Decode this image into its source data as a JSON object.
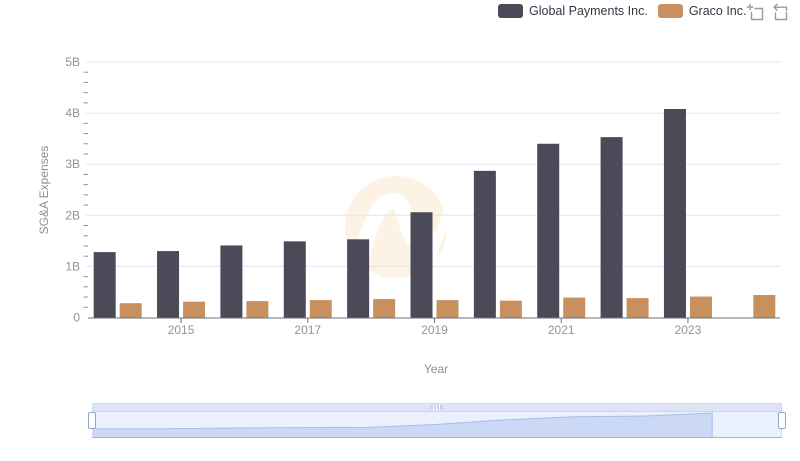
{
  "legend": {
    "items": [
      {
        "label": "Global Payments Inc.",
        "color": "#4a4a59"
      },
      {
        "label": "Graco Inc.",
        "color": "#c9905f"
      }
    ]
  },
  "toolbox": {
    "tools": [
      "zoom-select",
      "zoom-restore"
    ],
    "icon_color": "#9b9b9b"
  },
  "chart_data": {
    "type": "bar",
    "title": "",
    "xlabel": "Year",
    "ylabel": "SG&A Expenses",
    "categories": [
      "2014",
      "2015",
      "2016",
      "2017",
      "2018",
      "2019",
      "2020",
      "2021",
      "2022",
      "2023",
      "2024"
    ],
    "x_labeled_ticks": [
      "2015",
      "2017",
      "2019",
      "2021",
      "2023"
    ],
    "y_tick_labels": [
      "0",
      "1B",
      "2B",
      "3B",
      "4B",
      "5B"
    ],
    "ylim_billions": [
      0,
      5
    ],
    "grid": true,
    "legend_position": "top-right",
    "series": [
      {
        "name": "Global Payments Inc.",
        "color": "#4a4a59",
        "values_billions": [
          1.28,
          1.3,
          1.41,
          1.49,
          1.53,
          2.06,
          2.87,
          3.4,
          3.53,
          4.08,
          null
        ]
      },
      {
        "name": "Graco Inc.",
        "color": "#c9905f",
        "values_billions": [
          0.28,
          0.31,
          0.32,
          0.34,
          0.36,
          0.34,
          0.33,
          0.39,
          0.38,
          0.41,
          0.44
        ]
      }
    ]
  },
  "colors": {
    "grid_line": "#dfe6f2",
    "axis_line": "#6e7079",
    "axis_label": "#8f939e",
    "watermark": "#fdf3e4",
    "slider_track": "#eaf0fc",
    "slider_shadow_fill": "#ccd9f6",
    "slider_shadow_line": "#a8bde8"
  }
}
